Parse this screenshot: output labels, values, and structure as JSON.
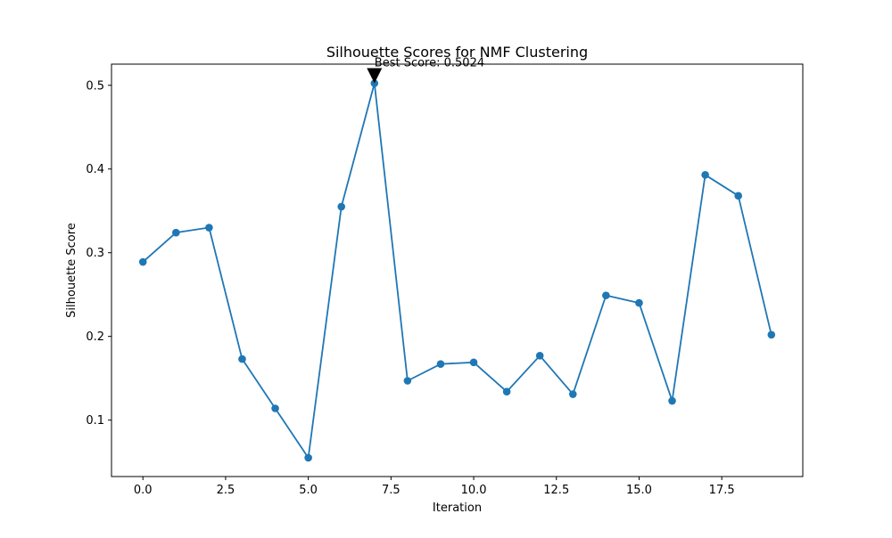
{
  "chart_data": {
    "type": "line",
    "title": "Silhouette Scores for NMF Clustering",
    "xlabel": "Iteration",
    "ylabel": "Silhouette Score",
    "xlim": [
      -0.95,
      19.95
    ],
    "ylim": [
      0.0326,
      0.5253
    ],
    "xticks": [
      0.0,
      2.5,
      5.0,
      7.5,
      10.0,
      12.5,
      15.0,
      17.5
    ],
    "xtick_labels": [
      "0.0",
      "2.5",
      "5.0",
      "7.5",
      "10.0",
      "12.5",
      "15.0",
      "17.5"
    ],
    "yticks": [
      0.1,
      0.2,
      0.3,
      0.4,
      0.5
    ],
    "ytick_labels": [
      "0.1",
      "0.2",
      "0.3",
      "0.4",
      "0.5"
    ],
    "grid": false,
    "legend": false,
    "series": [
      {
        "color": "#1f77b4",
        "marker": "circle",
        "x": [
          0,
          1,
          2,
          3,
          4,
          5,
          6,
          7,
          8,
          9,
          10,
          11,
          12,
          13,
          14,
          15,
          16,
          17,
          18,
          19
        ],
        "y": [
          0.289,
          0.324,
          0.33,
          0.173,
          0.114,
          0.055,
          0.355,
          0.5024,
          0.147,
          0.167,
          0.169,
          0.134,
          0.177,
          0.131,
          0.249,
          0.24,
          0.123,
          0.393,
          0.368,
          0.202
        ]
      }
    ],
    "annotation": {
      "text": "Best Score: 0.5024",
      "x": 7,
      "y": 0.5024,
      "arrow": "down-triangle",
      "arrow_color": "#000000"
    }
  }
}
